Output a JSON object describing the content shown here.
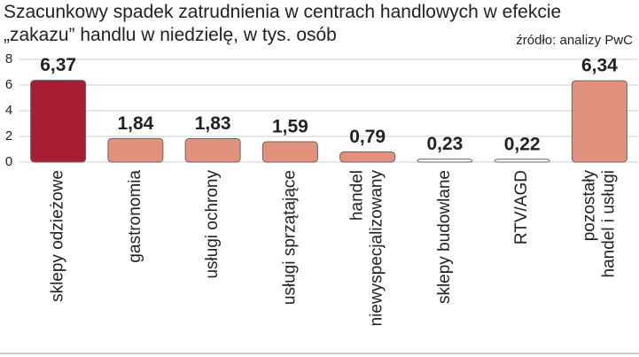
{
  "chart_data": {
    "type": "bar",
    "title": "Szacunkowy spadek zatrudnienia w centrach handlowych w efekcie\n„zakazu” handlu w niedzielę, w tys. osób",
    "source": "źródło: analizy PwC",
    "categories": [
      "sklepy odzieżowe",
      "gastronomia",
      "usługi ochrony",
      "usługi sprzątające",
      "handel\nniewyspecjalizowany",
      "sklepy budowlane",
      "RTV/AGD",
      "pozostały\nhandel i usługi"
    ],
    "values": [
      6.37,
      1.84,
      1.83,
      1.59,
      0.79,
      0.23,
      0.22,
      6.34
    ],
    "value_labels": [
      "6,37",
      "1,84",
      "1,83",
      "1,59",
      "0,79",
      "0,23",
      "0,22",
      "6,34"
    ],
    "colors": [
      "#a81d33",
      "#e2917c",
      "#e2917c",
      "#e2917c",
      "#e2917c",
      "#ffffff",
      "#ffffff",
      "#e2917c"
    ],
    "ylim": [
      0,
      8
    ],
    "yticks": [
      0,
      2,
      4,
      6,
      8
    ],
    "grid": true
  }
}
